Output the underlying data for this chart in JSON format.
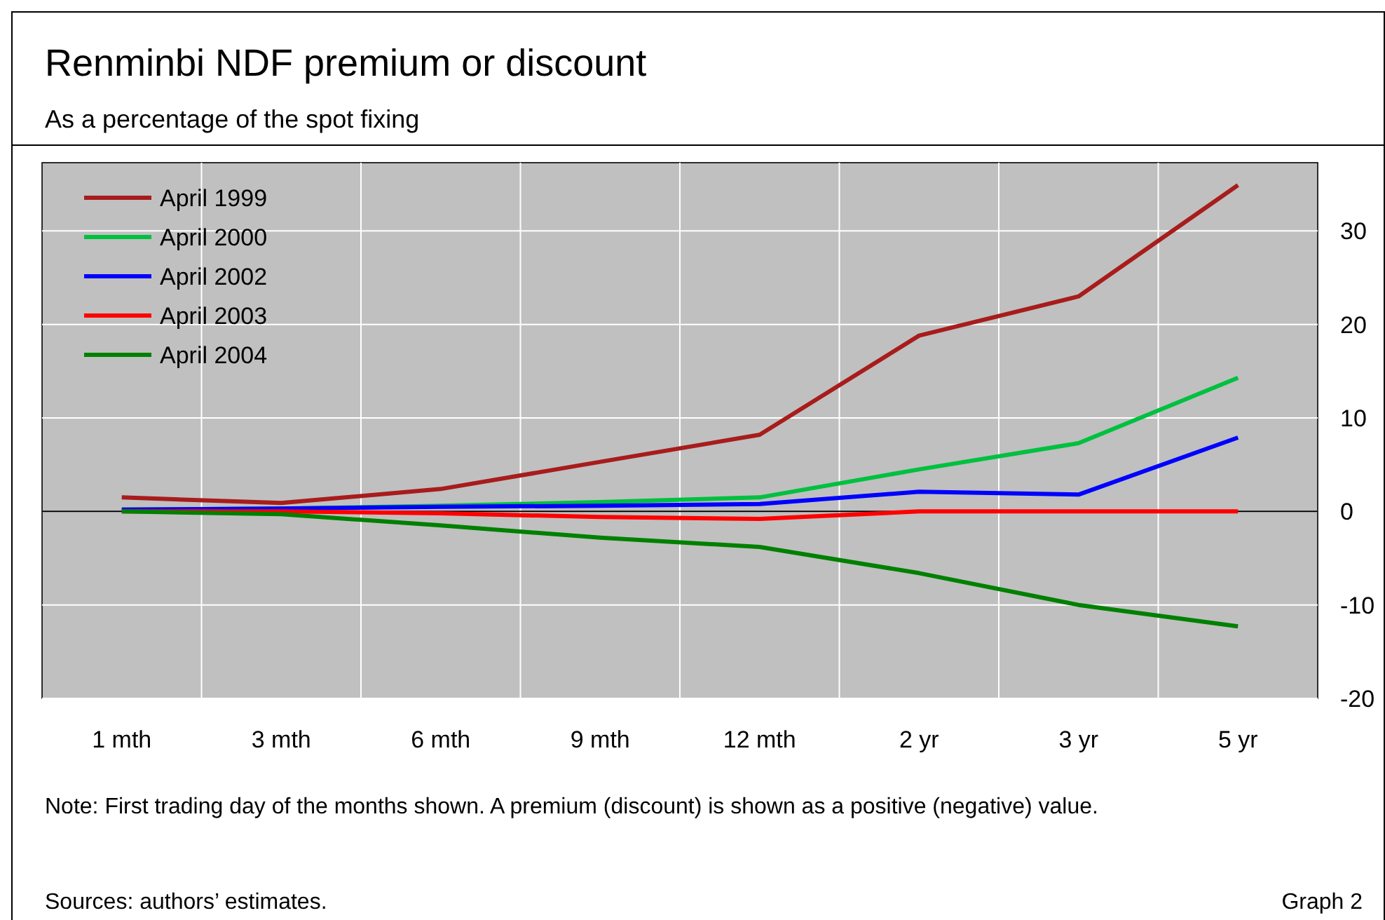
{
  "chart_data": {
    "type": "line",
    "title": "Renminbi NDF premium or discount",
    "subtitle": "As a percentage of the spot fixing",
    "categories": [
      "1 mth",
      "3 mth",
      "6 mth",
      "9 mth",
      "12 mth",
      "2 yr",
      "3 yr",
      "5 yr"
    ],
    "series": [
      {
        "name": "April 1999",
        "color": "#a81c1c",
        "values": [
          1.5,
          0.9,
          2.4,
          5.3,
          8.2,
          18.8,
          23,
          34.9
        ]
      },
      {
        "name": "April 2000",
        "color": "#00c040",
        "values": [
          0.2,
          0.3,
          0.6,
          1,
          1.5,
          4.5,
          7.3,
          14.3
        ]
      },
      {
        "name": "April 2002",
        "color": "#0000ff",
        "values": [
          0.2,
          0.3,
          0.5,
          0.6,
          0.8,
          2.1,
          1.8,
          7.9
        ]
      },
      {
        "name": "April 2003",
        "color": "#ff0000",
        "values": [
          0,
          0,
          -0.2,
          -0.6,
          -0.8,
          0,
          0,
          0
        ]
      },
      {
        "name": "April 2004",
        "color": "#008000",
        "values": [
          0,
          -0.3,
          -1.5,
          -2.8,
          -3.8,
          -6.6,
          -10,
          -12.3
        ]
      }
    ],
    "ylim": [
      -20,
      37.3
    ],
    "yticks": [
      -20,
      -10,
      0,
      10,
      20,
      30
    ],
    "grid": true,
    "legend": "top left",
    "marker": "none",
    "line_style": "solid",
    "annotations": [
      "Note: First trading day of the months shown. A premium (discount) is shown as a positive (negative) value.",
      "Sources: authors’ estimates.",
      "Graph 2"
    ]
  }
}
